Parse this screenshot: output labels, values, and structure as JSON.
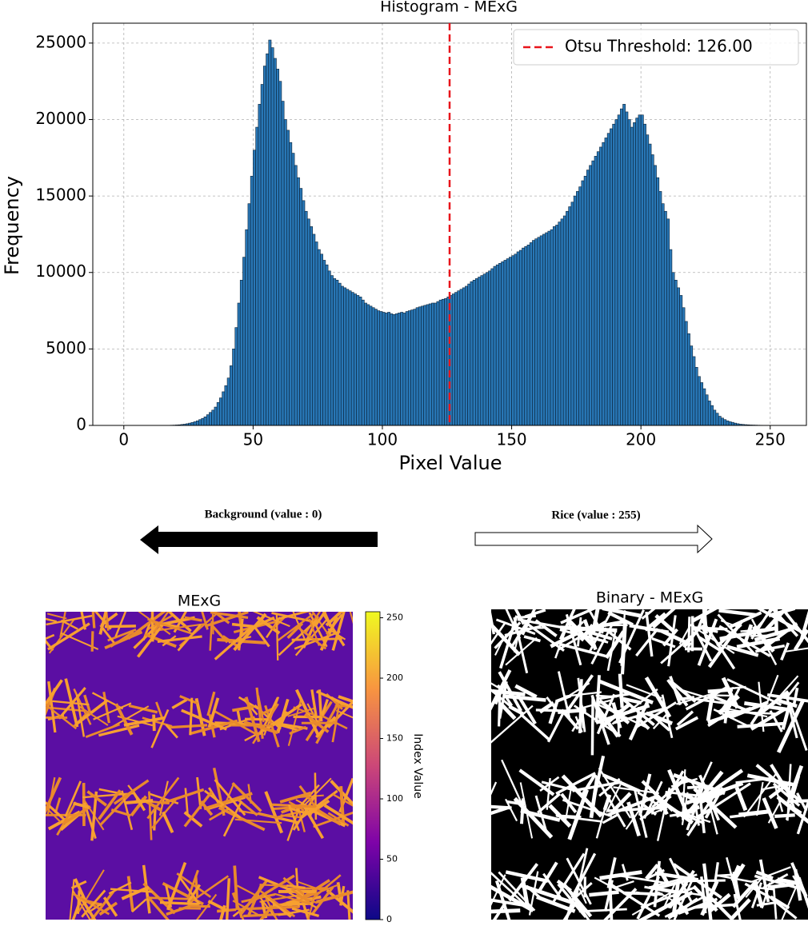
{
  "chart_data": {
    "type": "histogram",
    "title": "Histogram - MExG",
    "xlabel": "Pixel Value",
    "ylabel": "Frequency",
    "bins": [
      0,
      1,
      2,
      3,
      4,
      5,
      6,
      7,
      8,
      9,
      10,
      11,
      12,
      13,
      14,
      15,
      16,
      17,
      18,
      19,
      20,
      21,
      22,
      23,
      24,
      25,
      26,
      27,
      28,
      29,
      30,
      31,
      32,
      33,
      34,
      35,
      36,
      37,
      38,
      39,
      40,
      41,
      42,
      43,
      44,
      45,
      46,
      47,
      48,
      49,
      50,
      51,
      52,
      53,
      54,
      55,
      56,
      57,
      58,
      59,
      60,
      61,
      62,
      63,
      64,
      65,
      66,
      67,
      68,
      69,
      70,
      71,
      72,
      73,
      74,
      75,
      76,
      77,
      78,
      79,
      80,
      81,
      82,
      83,
      84,
      85,
      86,
      87,
      88,
      89,
      90,
      91,
      92,
      93,
      94,
      95,
      96,
      97,
      98,
      99,
      100,
      101,
      102,
      103,
      104,
      105,
      106,
      107,
      108,
      109,
      110,
      111,
      112,
      113,
      114,
      115,
      116,
      117,
      118,
      119,
      120,
      121,
      122,
      123,
      124,
      125,
      126,
      127,
      128,
      129,
      130,
      131,
      132,
      133,
      134,
      135,
      136,
      137,
      138,
      139,
      140,
      141,
      142,
      143,
      144,
      145,
      146,
      147,
      148,
      149,
      150,
      151,
      152,
      153,
      154,
      155,
      156,
      157,
      158,
      159,
      160,
      161,
      162,
      163,
      164,
      165,
      166,
      167,
      168,
      169,
      170,
      171,
      172,
      173,
      174,
      175,
      176,
      177,
      178,
      179,
      180,
      181,
      182,
      183,
      184,
      185,
      186,
      187,
      188,
      189,
      190,
      191,
      192,
      193,
      194,
      195,
      196,
      197,
      198,
      199,
      200,
      201,
      202,
      203,
      204,
      205,
      206,
      207,
      208,
      209,
      210,
      211,
      212,
      213,
      214,
      215,
      216,
      217,
      218,
      219,
      220,
      221,
      222,
      223,
      224,
      225,
      226,
      227,
      228,
      229,
      230,
      231,
      232,
      233,
      234,
      235,
      236,
      237,
      238,
      239,
      240,
      241,
      242,
      243,
      244,
      245,
      246,
      247,
      248,
      249,
      250,
      251,
      252,
      253,
      254,
      255,
      256
    ],
    "counts": [
      0,
      0,
      0,
      0,
      0,
      0,
      0,
      0,
      0,
      0,
      0,
      0,
      0,
      0,
      0,
      0,
      0,
      10,
      15,
      20,
      30,
      40,
      60,
      80,
      110,
      150,
      190,
      240,
      300,
      380,
      460,
      560,
      700,
      850,
      1000,
      1200,
      1500,
      1800,
      2200,
      2600,
      3100,
      3900,
      5000,
      6400,
      8000,
      9500,
      11000,
      12800,
      14500,
      16300,
      18000,
      19500,
      21000,
      22300,
      23500,
      24300,
      25200,
      24700,
      24000,
      23300,
      22500,
      21200,
      20000,
      19300,
      18500,
      17800,
      17000,
      16200,
      15500,
      14700,
      14000,
      13500,
      13000,
      12500,
      12000,
      11500,
      11200,
      10800,
      10500,
      10100,
      9800,
      9600,
      9500,
      9300,
      9100,
      9000,
      8900,
      8800,
      8700,
      8600,
      8500,
      8400,
      8200,
      8000,
      7900,
      7800,
      7700,
      7600,
      7500,
      7450,
      7400,
      7350,
      7400,
      7300,
      7250,
      7300,
      7350,
      7400,
      7350,
      7450,
      7500,
      7550,
      7600,
      7700,
      7750,
      7800,
      7850,
      7900,
      7950,
      8000,
      8000,
      8100,
      8200,
      8250,
      8300,
      8400,
      8500,
      8600,
      8700,
      8800,
      8900,
      9000,
      9100,
      9250,
      9400,
      9500,
      9600,
      9700,
      9800,
      9900,
      10000,
      10100,
      10250,
      10400,
      10500,
      10600,
      10700,
      10800,
      10900,
      11000,
      11100,
      11200,
      11350,
      11450,
      11600,
      11700,
      11800,
      11950,
      12100,
      12200,
      12300,
      12400,
      12500,
      12600,
      12700,
      12800,
      13000,
      13100,
      13300,
      13500,
      13700,
      14000,
      14300,
      14600,
      15000,
      15300,
      15600,
      16000,
      16300,
      16700,
      17000,
      17300,
      17600,
      17900,
      18200,
      18500,
      18800,
      19100,
      19400,
      19700,
      20000,
      20300,
      20700,
      21000,
      20500,
      20000,
      19500,
      19800,
      20100,
      20300,
      20300,
      19700,
      19000,
      18400,
      17700,
      17000,
      16200,
      15300,
      14500,
      14000,
      13500,
      11500,
      10000,
      9500,
      9000,
      8500,
      7700,
      6800,
      6000,
      5200,
      4500,
      3800,
      3200,
      2800,
      2400,
      2000,
      1600,
      1300,
      1000,
      800,
      600,
      480,
      380,
      300,
      240,
      200,
      150,
      110,
      80,
      65,
      50,
      40,
      30,
      25,
      20,
      15,
      12,
      10,
      8,
      6,
      5,
      3,
      2,
      1,
      0,
      0
    ],
    "color": "#2877b6",
    "edgecolor": "#0b2238",
    "threshold": {
      "value": 126,
      "label": "Otsu Threshold: 126.00",
      "color": "#e8141b"
    },
    "legend": "upper right",
    "xlim": [
      -12,
      264
    ],
    "ylim": [
      0,
      26300
    ],
    "xticks": [
      0,
      50,
      100,
      150,
      200,
      250
    ],
    "yticks": [
      0,
      5000,
      10000,
      15000,
      20000,
      25000
    ],
    "grid": true
  },
  "annotations": {
    "left_arrow": "Background (value : 0)",
    "right_arrow": "Rice (value : 255)"
  },
  "images": {
    "index_title": "MExG",
    "binary_title": "Binary - MExG",
    "colorbar": {
      "label": "Index Value",
      "clim": [
        0,
        255
      ],
      "ticks": [
        0,
        50,
        100,
        150,
        200,
        250
      ]
    }
  }
}
